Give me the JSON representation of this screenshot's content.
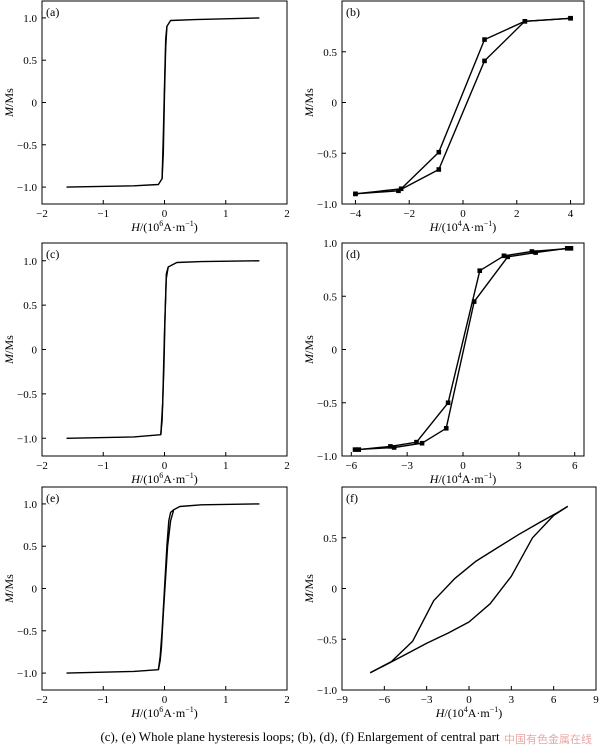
{
  "caption": "(c), (e) Whole plane hysteresis loops; (b), (d), (f) Enlargement of central part",
  "watermark": "中国有色金属在线",
  "chart_data": [
    {
      "panel": "(a)",
      "type": "line",
      "xlim": [
        -2,
        2
      ],
      "ylim": [
        -1.2,
        1.2
      ],
      "xticks": [
        "−2",
        "−1",
        "0",
        "1",
        "2"
      ],
      "xtick_values": [
        -2,
        -1,
        0,
        1,
        2
      ],
      "yticks": [
        "−1.0",
        "−0.5",
        "0",
        "0.5",
        "1.0"
      ],
      "ytick_values": [
        -1,
        -0.5,
        0,
        0.5,
        1
      ],
      "xlabel": {
        "pre": "H",
        "mid": "/(10",
        "sup": "6",
        "post": "A·m",
        "sup2": "−1",
        "end": ")"
      },
      "ylabel": {
        "pre": "M",
        "post": "/Ms"
      },
      "series": [
        {
          "markers": false,
          "x": [
            -1.6,
            -0.5,
            -0.1,
            -0.04,
            -0.02,
            0.0,
            0.02,
            0.04,
            0.1,
            0.5,
            1.55
          ],
          "y": [
            -1.0,
            -0.985,
            -0.97,
            -0.9,
            -0.4,
            0.2,
            0.75,
            0.9,
            0.97,
            0.98,
            1.0
          ]
        },
        {
          "markers": false,
          "x": [
            -0.04,
            -0.02,
            0.0,
            0.02,
            0.04
          ],
          "y": [
            -0.9,
            -0.6,
            0.1,
            0.65,
            0.9
          ]
        }
      ]
    },
    {
      "panel": "(b)",
      "type": "line",
      "xlim": [
        -4.5,
        4.5
      ],
      "ylim": [
        -1.0,
        1.0
      ],
      "xticks": [
        "−4",
        "−2",
        "0",
        "2",
        "4"
      ],
      "xtick_values": [
        -4,
        -2,
        0,
        2,
        4
      ],
      "yticks": [
        "−1.0",
        "−0.5",
        "0",
        "0.5"
      ],
      "ytick_values": [
        -1,
        -0.5,
        0,
        0.5
      ],
      "xlabel": {
        "pre": "H",
        "mid": "/(10",
        "sup": "4",
        "post": "A·m",
        "sup2": "−1",
        "end": ")"
      },
      "ylabel": {
        "pre": "M",
        "post": "/Ms"
      },
      "series": [
        {
          "markers": true,
          "x": [
            -4,
            -2.4,
            -0.9,
            0.8,
            2.3,
            4.0
          ],
          "y": [
            -0.9,
            -0.87,
            -0.66,
            0.41,
            0.8,
            0.83
          ]
        },
        {
          "markers": true,
          "x": [
            -4,
            -2.3,
            -0.9,
            0.8,
            2.3,
            4.0
          ],
          "y": [
            -0.9,
            -0.85,
            -0.49,
            0.62,
            0.8,
            0.83
          ]
        }
      ]
    },
    {
      "panel": "(c)",
      "type": "line",
      "xlim": [
        -2,
        2
      ],
      "ylim": [
        -1.2,
        1.2
      ],
      "xticks": [
        "−2",
        "−1",
        "0",
        "1",
        "2"
      ],
      "xtick_values": [
        -2,
        -1,
        0,
        1,
        2
      ],
      "yticks": [
        "−1.0",
        "−0.5",
        "0",
        "0.5",
        "1.0"
      ],
      "ytick_values": [
        -1,
        -0.5,
        0,
        0.5,
        1
      ],
      "xlabel": {
        "pre": "H",
        "mid": "/(10",
        "sup": "6",
        "post": "A·m",
        "sup2": "−1",
        "end": ")"
      },
      "ylabel": {
        "pre": "M",
        "post": "/Ms"
      },
      "series": [
        {
          "markers": false,
          "x": [
            -1.6,
            -0.5,
            -0.06,
            -0.04,
            -0.01,
            0.01,
            0.03,
            0.06,
            0.2,
            0.6,
            1.55
          ],
          "y": [
            -1.0,
            -0.985,
            -0.96,
            -0.8,
            -0.2,
            0.4,
            0.85,
            0.93,
            0.98,
            0.99,
            1.0
          ]
        },
        {
          "markers": false,
          "x": [
            -0.06,
            -0.03,
            0.0,
            0.03,
            0.06
          ],
          "y": [
            -0.96,
            -0.6,
            0.2,
            0.8,
            0.93
          ]
        }
      ]
    },
    {
      "panel": "(d)",
      "type": "line",
      "xlim": [
        -6.5,
        6.5
      ],
      "ylim": [
        -1.0,
        1.0
      ],
      "xticks": [
        "−6",
        "−3",
        "0",
        "3",
        "6"
      ],
      "xtick_values": [
        -6,
        -3,
        0,
        3,
        6
      ],
      "yticks": [
        "−1.0",
        "−0.5",
        "0",
        "0.5",
        "1.0"
      ],
      "ytick_values": [
        -1,
        -0.5,
        0,
        0.5,
        1
      ],
      "xlabel": {
        "pre": "H",
        "mid": "/(10",
        "sup": "4",
        "post": "A·m",
        "sup2": "−1",
        "end": ")"
      },
      "ylabel": {
        "pre": "M",
        "post": "/Ms"
      },
      "series": [
        {
          "markers": true,
          "x": [
            -5.8,
            -3.7,
            -2.2,
            -0.9,
            0.6,
            2.4,
            3.9,
            5.6
          ],
          "y": [
            -0.94,
            -0.92,
            -0.88,
            -0.74,
            0.45,
            0.87,
            0.91,
            0.95
          ]
        },
        {
          "markers": true,
          "x": [
            -5.6,
            -3.9,
            -2.5,
            -0.8,
            0.9,
            2.2,
            3.7,
            5.8
          ],
          "y": [
            -0.94,
            -0.91,
            -0.87,
            -0.5,
            0.74,
            0.88,
            0.92,
            0.95
          ]
        }
      ]
    },
    {
      "panel": "(e)",
      "type": "line",
      "xlim": [
        -2,
        2
      ],
      "ylim": [
        -1.2,
        1.2
      ],
      "xticks": [
        "−2",
        "−1",
        "0",
        "1",
        "2"
      ],
      "xtick_values": [
        -2,
        -1,
        0,
        1,
        2
      ],
      "yticks": [
        "−1.0",
        "−0.5",
        "0",
        "0.5",
        "1.0"
      ],
      "ytick_values": [
        -1,
        -0.5,
        0,
        0.5,
        1
      ],
      "xlabel": {
        "pre": "H",
        "mid": "/(10",
        "sup": "6",
        "post": "A·m",
        "sup2": "−1",
        "end": ")"
      },
      "ylabel": {
        "pre": "M",
        "post": "/Ms"
      },
      "series": [
        {
          "markers": false,
          "x": [
            -1.6,
            -0.5,
            -0.1,
            -0.07,
            -0.05,
            -0.02,
            0.05,
            0.1,
            0.15,
            0.25,
            0.6,
            1.55
          ],
          "y": [
            -1.0,
            -0.98,
            -0.96,
            -0.85,
            -0.7,
            -0.3,
            0.5,
            0.8,
            0.93,
            0.97,
            0.99,
            1.0
          ]
        },
        {
          "markers": false,
          "x": [
            -0.1,
            -0.07,
            -0.04,
            0.0,
            0.04,
            0.07,
            0.1,
            0.15
          ],
          "y": [
            -0.96,
            -0.8,
            -0.5,
            0.0,
            0.5,
            0.8,
            0.9,
            0.93
          ]
        }
      ]
    },
    {
      "panel": "(f)",
      "type": "line",
      "xlim": [
        -9,
        9
      ],
      "ylim": [
        -1.0,
        1.0
      ],
      "xticks": [
        "−9",
        "−6",
        "−3",
        "0",
        "3",
        "6",
        "9"
      ],
      "xtick_values": [
        -9,
        -6,
        -3,
        0,
        3,
        6,
        9
      ],
      "yticks": [
        "−1.0",
        "−0.5",
        "0",
        "0.5"
      ],
      "ytick_values": [
        -1,
        -0.5,
        0,
        0.5
      ],
      "xlabel": {
        "pre": "H",
        "mid": "/(10",
        "sup": "4",
        "post": "A·m",
        "sup2": "−1",
        "end": ")"
      },
      "ylabel": {
        "pre": "M",
        "post": "/Ms"
      },
      "series": [
        {
          "markers": false,
          "x": [
            -7.0,
            -6.0,
            -4.5,
            -3.0,
            -1.5,
            0.0,
            1.5,
            3.0,
            4.5,
            6.0,
            7.0
          ],
          "y": [
            -0.83,
            -0.76,
            -0.65,
            -0.54,
            -0.44,
            -0.33,
            -0.15,
            0.12,
            0.5,
            0.72,
            0.81
          ]
        },
        {
          "markers": false,
          "x": [
            -7.0,
            -5.5,
            -4.0,
            -2.5,
            -1.0,
            0.5,
            2.0,
            3.5,
            5.0,
            6.3,
            7.0
          ],
          "y": [
            -0.83,
            -0.72,
            -0.52,
            -0.12,
            0.1,
            0.27,
            0.4,
            0.53,
            0.65,
            0.75,
            0.81
          ]
        }
      ]
    }
  ]
}
